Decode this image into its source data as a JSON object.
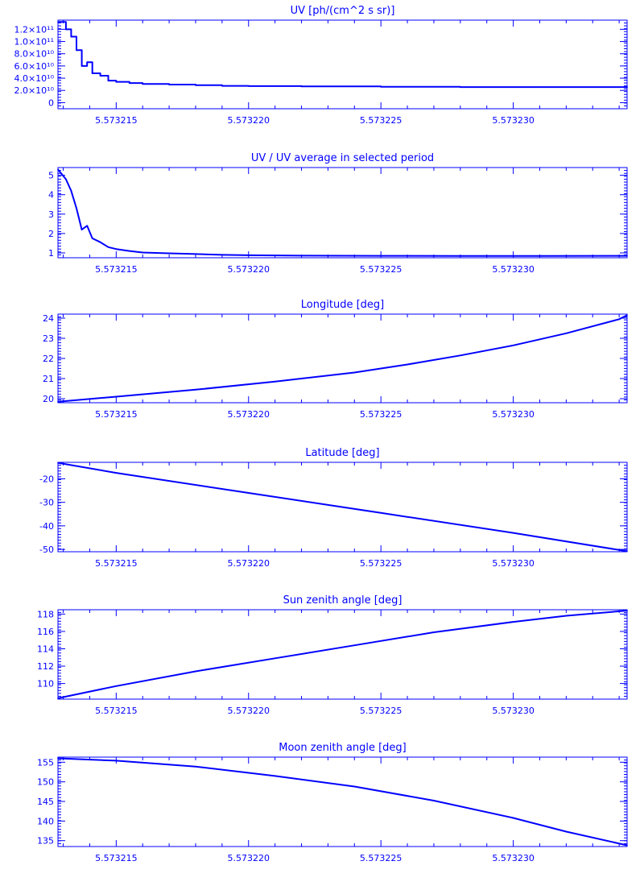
{
  "chart_data": [
    {
      "type": "line",
      "title": "UV [ph/(cm^2 s sr)]",
      "xlim": [
        5.5732128,
        5.5732343
      ],
      "ylim": [
        -10000000000.0,
        135000000000.0
      ],
      "x_ticks": [
        "5.573215",
        "5.573220",
        "5.573225",
        "5.573230"
      ],
      "y_ticks": [
        "1.2×10¹¹",
        "1.0×10¹¹",
        "8.0×10¹⁰",
        "6.0×10¹⁰",
        "4.0×10¹⁰",
        "2.0×10¹⁰",
        "0"
      ],
      "y_tick_values": [
        120000000000.0,
        100000000000.0,
        80000000000.0,
        60000000000.0,
        40000000000.0,
        20000000000.0,
        0
      ],
      "series": [
        {
          "step": true,
          "x": [
            5.5732128,
            5.5732131,
            5.5732133,
            5.5732135,
            5.5732137,
            5.5732139,
            5.5732141,
            5.5732144,
            5.5732147,
            5.573215,
            5.5732155,
            5.573216,
            5.573217,
            5.573218,
            5.573219,
            5.57322,
            5.573222,
            5.573225,
            5.573228,
            5.573231,
            5.5732343
          ],
          "y": [
            132000000000.0,
            120000000000.0,
            108000000000.0,
            86000000000.0,
            60000000000.0,
            66000000000.0,
            48000000000.0,
            44000000000.0,
            36000000000.0,
            34000000000.0,
            32000000000.0,
            30500000000.0,
            29500000000.0,
            28500000000.0,
            27500000000.0,
            27000000000.0,
            26500000000.0,
            26000000000.0,
            25500000000.0,
            25500000000.0,
            26000000000.0
          ]
        }
      ],
      "color": "#0000ff"
    },
    {
      "type": "line",
      "title": "UV / UV average in selected period",
      "xlim": [
        5.5732128,
        5.5732343
      ],
      "ylim": [
        0.75,
        5.4
      ],
      "x_ticks": [
        "5.573215",
        "5.573220",
        "5.573225",
        "5.573230"
      ],
      "y_ticks": [
        "5",
        "4",
        "3",
        "2",
        "1"
      ],
      "y_tick_values": [
        5,
        4,
        3,
        2,
        1
      ],
      "series": [
        {
          "x": [
            5.5732128,
            5.5732131,
            5.5732133,
            5.5732135,
            5.5732137,
            5.5732139,
            5.5732141,
            5.5732144,
            5.5732147,
            5.573215,
            5.5732155,
            5.573216,
            5.573217,
            5.573218,
            5.573219,
            5.57322,
            5.573222,
            5.573225,
            5.573228,
            5.573231,
            5.5732343
          ],
          "y": [
            5.3,
            4.8,
            4.2,
            3.3,
            2.2,
            2.4,
            1.75,
            1.55,
            1.3,
            1.2,
            1.1,
            1.02,
            0.98,
            0.94,
            0.9,
            0.88,
            0.86,
            0.85,
            0.84,
            0.84,
            0.85
          ]
        }
      ],
      "color": "#0000ff"
    },
    {
      "type": "line",
      "title": "Longitude [deg]",
      "xlim": [
        5.5732128,
        5.5732343
      ],
      "ylim": [
        19.8,
        24.2
      ],
      "x_ticks": [
        "5.573215",
        "5.573220",
        "5.573225",
        "5.573230"
      ],
      "y_ticks": [
        "24",
        "23",
        "22",
        "21",
        "20"
      ],
      "y_tick_values": [
        24,
        23,
        22,
        21,
        20
      ],
      "series": [
        {
          "x": [
            5.5732128,
            5.573215,
            5.573218,
            5.573221,
            5.573224,
            5.573226,
            5.573228,
            5.57323,
            5.573232,
            5.573234,
            5.5732343
          ],
          "y": [
            19.85,
            20.1,
            20.45,
            20.85,
            21.3,
            21.7,
            22.15,
            22.65,
            23.25,
            23.95,
            24.15
          ]
        }
      ],
      "color": "#0000ff"
    },
    {
      "type": "line",
      "title": "Latitude [deg]",
      "xlim": [
        5.5732128,
        5.5732343
      ],
      "ylim": [
        -51,
        -13
      ],
      "x_ticks": [
        "5.573215",
        "5.573220",
        "5.573225",
        "5.573230"
      ],
      "y_ticks": [
        "-20",
        "-30",
        "-40",
        "-50"
      ],
      "y_tick_values": [
        -20,
        -30,
        -40,
        -50
      ],
      "series": [
        {
          "x": [
            5.5732128,
            5.573215,
            5.57322,
            5.573225,
            5.57323,
            5.5732343
          ],
          "y": [
            -13.2,
            -17.5,
            -26.0,
            -34.5,
            -43.0,
            -50.8
          ]
        }
      ],
      "color": "#0000ff"
    },
    {
      "type": "line",
      "title": "Sun zenith angle [deg]",
      "xlim": [
        5.5732128,
        5.5732343
      ],
      "ylim": [
        108.2,
        118.5
      ],
      "x_ticks": [
        "5.573215",
        "5.573220",
        "5.573225",
        "5.573230"
      ],
      "y_ticks": [
        "118",
        "116",
        "114",
        "112",
        "110"
      ],
      "y_tick_values": [
        118,
        116,
        114,
        112,
        110
      ],
      "series": [
        {
          "x": [
            5.5732128,
            5.573215,
            5.573218,
            5.573221,
            5.573224,
            5.573227,
            5.57323,
            5.573232,
            5.5732343
          ],
          "y": [
            108.3,
            109.7,
            111.4,
            112.9,
            114.4,
            115.9,
            117.1,
            117.8,
            118.4
          ]
        }
      ],
      "color": "#0000ff"
    },
    {
      "type": "line",
      "title": "Moon zenith angle [deg]",
      "xlim": [
        5.5732128,
        5.5732343
      ],
      "ylim": [
        133.5,
        156.3
      ],
      "x_ticks": [
        "5.573215",
        "5.573220",
        "5.573225",
        "5.573230"
      ],
      "y_ticks": [
        "155",
        "150",
        "145",
        "140",
        "135"
      ],
      "y_tick_values": [
        155,
        150,
        145,
        140,
        135
      ],
      "series": [
        {
          "x": [
            5.5732128,
            5.573215,
            5.573218,
            5.573221,
            5.573224,
            5.573227,
            5.57323,
            5.573232,
            5.5732343
          ],
          "y": [
            156.0,
            155.4,
            153.9,
            151.5,
            148.8,
            145.2,
            140.8,
            137.3,
            133.8
          ]
        }
      ],
      "color": "#0000ff"
    }
  ]
}
